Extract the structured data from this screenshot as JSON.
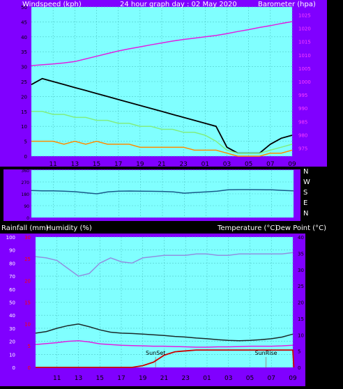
{
  "chart_data": [
    {
      "type": "line",
      "title": "24 hour graph day : 02 May 2020",
      "left_axis_label": "Windspeed (kph)",
      "right_axis_label": "Barometer (hpa)",
      "x_tick_labels": [
        "11",
        "13",
        "15",
        "17",
        "19",
        "21",
        "23",
        "01",
        "03",
        "05",
        "07",
        "09"
      ],
      "ylim_left": [
        0,
        50
      ],
      "yticks_left": [
        0,
        5,
        10,
        15,
        20,
        25,
        30,
        35,
        40,
        45,
        50
      ],
      "ylim_right": [
        972,
        1028
      ],
      "yticks_right": [
        975,
        980,
        985,
        990,
        995,
        1000,
        1005,
        1010,
        1015,
        1020,
        1025
      ],
      "grid": true,
      "series": [
        {
          "axis": "left",
          "color": "#000000",
          "x": [
            9,
            10,
            11,
            12,
            13,
            14,
            15,
            16,
            17,
            18,
            19,
            20,
            21,
            22,
            23,
            24,
            25,
            26,
            27,
            28,
            29,
            30,
            31,
            32,
            33
          ],
          "values": [
            24,
            26,
            25,
            24,
            23,
            22,
            21,
            20,
            19,
            18,
            17,
            16,
            15,
            14,
            13,
            12,
            11,
            10,
            3,
            1,
            1,
            1,
            4,
            6,
            7
          ]
        },
        {
          "axis": "left",
          "color": "#80ee80",
          "x": [
            9,
            10,
            11,
            12,
            13,
            14,
            15,
            16,
            17,
            18,
            19,
            20,
            21,
            22,
            23,
            24,
            25,
            26,
            27,
            28,
            29,
            30,
            31,
            32,
            33
          ],
          "values": [
            15,
            15,
            14,
            14,
            13,
            13,
            12,
            12,
            11,
            11,
            10,
            10,
            9,
            9,
            8,
            8,
            7,
            5,
            2,
            1,
            1,
            1,
            2,
            3,
            4
          ]
        },
        {
          "axis": "left",
          "color": "#ff8c00",
          "x": [
            9,
            10,
            11,
            12,
            13,
            14,
            15,
            16,
            17,
            18,
            19,
            20,
            21,
            22,
            23,
            24,
            25,
            26,
            27,
            28,
            29,
            30,
            31,
            32,
            33
          ],
          "values": [
            5,
            5,
            5,
            4,
            5,
            4,
            5,
            4,
            4,
            4,
            3,
            3,
            3,
            3,
            3,
            2,
            2,
            2,
            1,
            0,
            0,
            0,
            1,
            1,
            2
          ]
        },
        {
          "axis": "right",
          "color": "#e020e0",
          "x": [
            9,
            10,
            11,
            12,
            13,
            14,
            15,
            16,
            17,
            18,
            19,
            20,
            21,
            22,
            23,
            24,
            25,
            26,
            27,
            28,
            29,
            30,
            31,
            32,
            33
          ],
          "values": [
            1006,
            1006.3,
            1006.6,
            1007,
            1007.5,
            1008.5,
            1009.5,
            1010.5,
            1011.5,
            1012.3,
            1013,
            1013.8,
            1014.5,
            1015.2,
            1015.8,
            1016.3,
            1016.8,
            1017.3,
            1018,
            1018.8,
            1019.5,
            1020.3,
            1021,
            1021.8,
            1022.5
          ]
        }
      ]
    },
    {
      "type": "line",
      "ylim": [
        0,
        360
      ],
      "yticks": [
        0,
        90,
        180,
        270,
        360
      ],
      "ytick_labels": [
        "0",
        "90",
        "180",
        "270",
        "360"
      ],
      "right_labels": [
        "N",
        "W",
        "S",
        "E",
        "N"
      ],
      "x_tick_labels": [
        "11",
        "13",
        "15",
        "17",
        "19",
        "21",
        "23",
        "01",
        "03",
        "05",
        "07",
        "09"
      ],
      "series": [
        {
          "color": "#1a5a8a",
          "x": [
            9,
            10,
            11,
            12,
            13,
            14,
            15,
            16,
            17,
            18,
            19,
            20,
            21,
            22,
            23,
            24,
            25,
            26,
            27,
            28,
            29,
            30,
            31,
            32,
            33
          ],
          "values": [
            205,
            203,
            202,
            200,
            196,
            188,
            180,
            195,
            200,
            201,
            200,
            199,
            198,
            195,
            185,
            190,
            195,
            200,
            210,
            212,
            212,
            211,
            210,
            206,
            202
          ]
        }
      ]
    },
    {
      "type": "line",
      "left_axis_labels": [
        "Rainfall (mm)",
        "Humidity (%)"
      ],
      "right_axis_labels": [
        "Temperature (°C)",
        "Dew Point (°C)"
      ],
      "ylim_humidity": [
        0,
        100
      ],
      "yticks_humidity": [
        0,
        10,
        20,
        30,
        40,
        50,
        60,
        70,
        80,
        90,
        100
      ],
      "ylim_rain": [
        0,
        30
      ],
      "yticks_rain": [
        0,
        5,
        10,
        15,
        20,
        25,
        30
      ],
      "ylim_temp": [
        0,
        40
      ],
      "yticks_temp": [
        0,
        5,
        10,
        15,
        20,
        25,
        30,
        35,
        40
      ],
      "x_tick_labels": [
        "11",
        "13",
        "15",
        "17",
        "19",
        "21",
        "23",
        "01",
        "03",
        "05",
        "07",
        "09"
      ],
      "annotations": [
        {
          "text": "SunSet",
          "x": 20.2
        },
        {
          "text": "SunRise",
          "x": 30.5
        }
      ],
      "series": [
        {
          "name": "Humidity",
          "axis": "humidity",
          "color": "#9090e0",
          "x": [
            9,
            10,
            11,
            12,
            13,
            14,
            15,
            16,
            17,
            18,
            19,
            20,
            21,
            22,
            23,
            24,
            25,
            26,
            27,
            28,
            29,
            30,
            31,
            32,
            33
          ],
          "values": [
            85,
            84,
            82,
            76,
            70,
            72,
            80,
            84,
            81,
            80,
            84,
            85,
            86,
            86,
            86,
            87,
            87,
            86,
            86,
            87,
            87,
            87,
            87,
            87,
            88
          ]
        },
        {
          "name": "Temperature",
          "axis": "temp",
          "color": "#1a2a2a",
          "x": [
            9,
            10,
            11,
            12,
            13,
            14,
            15,
            16,
            17,
            18,
            19,
            20,
            21,
            22,
            23,
            24,
            25,
            26,
            27,
            28,
            29,
            30,
            31,
            32,
            33
          ],
          "values": [
            10.5,
            11,
            12,
            12.8,
            13.3,
            12.5,
            11.5,
            10.8,
            10.5,
            10.4,
            10.2,
            10,
            9.8,
            9.5,
            9.3,
            9,
            8.8,
            8.5,
            8.3,
            8.2,
            8.3,
            8.5,
            8.8,
            9.3,
            10.2
          ]
        },
        {
          "name": "Dew Point",
          "axis": "temp",
          "color": "#e020e0",
          "x": [
            9,
            10,
            11,
            12,
            13,
            14,
            15,
            16,
            17,
            18,
            19,
            20,
            21,
            22,
            23,
            24,
            25,
            26,
            27,
            28,
            29,
            30,
            31,
            32,
            33
          ],
          "values": [
            7,
            7.3,
            7.6,
            8,
            8.2,
            7.8,
            7.2,
            7,
            6.8,
            6.7,
            6.6,
            6.5,
            6.5,
            6.4,
            6.3,
            6.2,
            6.2,
            6.3,
            6.3,
            6.4,
            6.5,
            6.5,
            6.5,
            6.6,
            6.8
          ]
        },
        {
          "name": "Rainfall",
          "axis": "rain",
          "color": "#cc0000",
          "x": [
            9,
            10,
            11,
            12,
            13,
            14,
            15,
            16,
            17,
            18,
            19,
            20,
            21,
            22,
            23,
            24,
            25,
            26,
            27,
            28,
            29,
            30,
            31,
            32,
            33,
            33.1
          ],
          "values": [
            0,
            0,
            0,
            0,
            0,
            0,
            0,
            0,
            0,
            0,
            0.4,
            1.2,
            2.8,
            3.6,
            3.8,
            4,
            4,
            4,
            4,
            4,
            4,
            4,
            4,
            4,
            4,
            0
          ]
        }
      ]
    }
  ]
}
